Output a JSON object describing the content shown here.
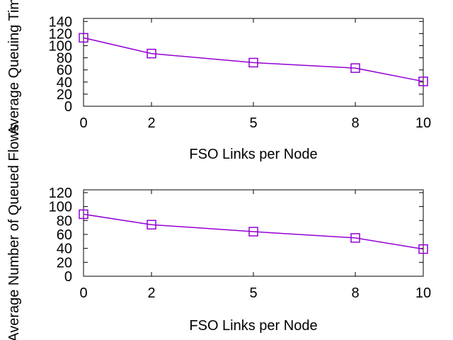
{
  "chart_data": [
    {
      "type": "line",
      "xlabel": "FSO Links per Node",
      "ylabel": "Average Queuing Time",
      "categories": [
        "0",
        "2",
        "5",
        "8",
        "10"
      ],
      "yticks": [
        "0",
        "20",
        "40",
        "60",
        "80",
        "100",
        "120",
        "140"
      ],
      "ylim": [
        0,
        145
      ],
      "grid": false,
      "series": [
        {
          "color": "#9400D3",
          "marker": "open-square",
          "values": [
            113,
            87,
            72,
            63,
            41
          ]
        }
      ]
    },
    {
      "type": "line",
      "xlabel": "FSO Links per Node",
      "ylabel": "Average Number of Queued Flows",
      "categories": [
        "0",
        "2",
        "5",
        "8",
        "10"
      ],
      "yticks": [
        "0",
        "20",
        "40",
        "60",
        "80",
        "100",
        "120"
      ],
      "ylim": [
        0,
        124
      ],
      "grid": false,
      "series": [
        {
          "color": "#9400D3",
          "marker": "open-square",
          "values": [
            89,
            74,
            64,
            55,
            39
          ]
        }
      ]
    }
  ]
}
